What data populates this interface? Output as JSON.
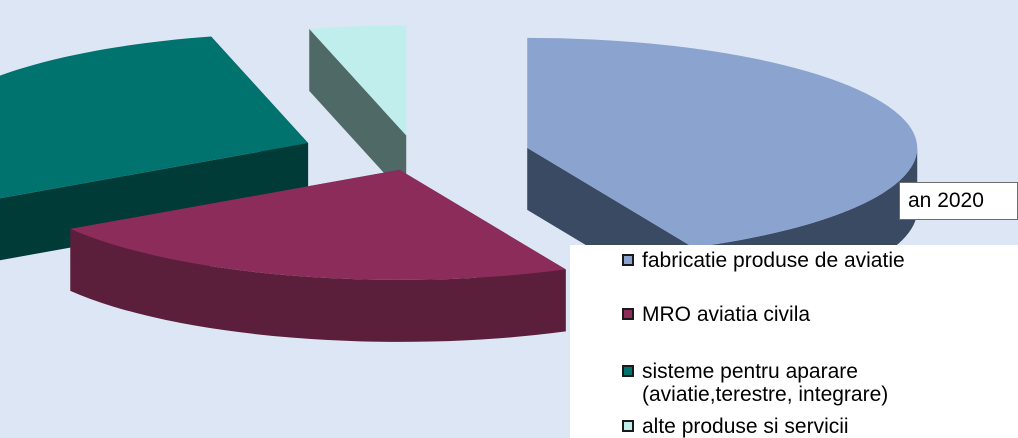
{
  "chart_data": {
    "type": "pie",
    "title": "an 2020",
    "style": "3d-exploded",
    "legend_position": "bottom-right",
    "categories": [
      "fabricatie produse de aviatie",
      "MRO aviatia civila",
      "sisteme pentru aparare\n(aviatie,terestre, integrare)",
      "alte produse si servicii"
    ],
    "values": [
      43,
      23,
      30,
      4
    ],
    "colors": {
      "top": [
        "#8aa3cf",
        "#8b2c5b",
        "#00736e",
        "#c0eeec"
      ],
      "side": [
        "#3b4a63",
        "#5b1e3b",
        "#003b37",
        "#4f6a66"
      ]
    }
  }
}
